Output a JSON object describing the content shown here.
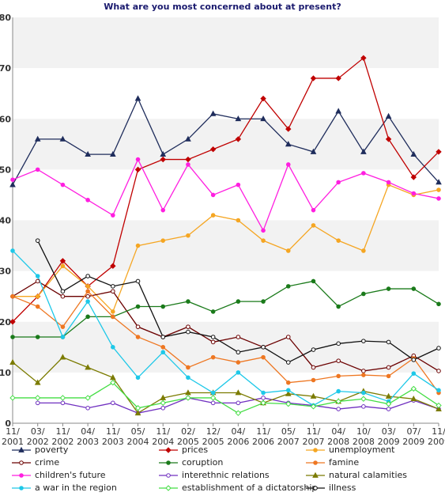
{
  "chart_data": {
    "type": "line",
    "title": "What are you most concerned about at present?",
    "xlabel": "",
    "ylabel": "",
    "ylim": [
      0,
      80
    ],
    "yticks": [
      0,
      10,
      20,
      30,
      40,
      50,
      60,
      70,
      80
    ],
    "grid": "horizontal bands",
    "legend_position": "bottom",
    "x": [
      "11/ 2001",
      "03/ 2002",
      "11/ 2002",
      "04/ 2003",
      "11/ 2003",
      "05/ 2004",
      "11/ 2004",
      "02/ 2005",
      "12/ 2005",
      "04/ 2006",
      "11/ 2006",
      "05/ 2007",
      "11/ 2007",
      "04/ 2008",
      "10/ 2008",
      "03/ 2009",
      "07/ 2009",
      "11/ 2009"
    ],
    "series": [
      {
        "name": "poverty",
        "color": "#1f2d5c",
        "marker": "triangle",
        "values": [
          47,
          56,
          56,
          53,
          53,
          64,
          53,
          56,
          61,
          60,
          60,
          55,
          53.5,
          61.5,
          53.5,
          60.5,
          53,
          47.5
        ]
      },
      {
        "name": "prices",
        "color": "#c00000",
        "marker": "diamond",
        "values": [
          20,
          25,
          32,
          27,
          31,
          50,
          52,
          52,
          54,
          56,
          64,
          58,
          68,
          68,
          72,
          56,
          48.5,
          53.5
        ]
      },
      {
        "name": "unemployment",
        "color": "#f5a623",
        "marker": "circle",
        "values": [
          25,
          25,
          31,
          27,
          22,
          35,
          36,
          37,
          41,
          40,
          36,
          34,
          39,
          36,
          34,
          47,
          45,
          46
        ]
      },
      {
        "name": "crime",
        "color": "#6b0000",
        "marker": "circle-open",
        "values": [
          25,
          28,
          25,
          25,
          26,
          19,
          17,
          19,
          16,
          17,
          15,
          17,
          11,
          12.3,
          10.3,
          11,
          13.3,
          10.3
        ]
      },
      {
        "name": "coruption",
        "color": "#1a7a1a",
        "marker": "circle",
        "values": [
          17,
          17,
          17,
          21,
          21,
          23,
          23,
          24,
          22,
          24,
          24,
          27,
          28,
          23,
          25.5,
          26.5,
          26.5,
          23.5
        ]
      },
      {
        "name": "famine",
        "color": "#ee7722",
        "marker": "circle",
        "values": [
          25,
          23,
          19,
          26,
          21,
          17,
          15,
          11,
          13,
          12,
          13,
          8,
          8.5,
          9.3,
          9.5,
          9.3,
          12.8,
          6
        ]
      },
      {
        "name": "children's future",
        "color": "#ff1fe0",
        "marker": "circle",
        "values": [
          48,
          50,
          47,
          44,
          41,
          52,
          42,
          51,
          45,
          47,
          38,
          51,
          42,
          47.5,
          49.3,
          47.5,
          45.3,
          44.3
        ]
      },
      {
        "name": "interethnic relations",
        "color": "#7030c0",
        "marker": "circle-open",
        "values": [
          null,
          4,
          4,
          3,
          4,
          2,
          3,
          5,
          4,
          4,
          5,
          4,
          3.5,
          2.8,
          3.3,
          2.8,
          4.5,
          2.8
        ]
      },
      {
        "name": "natural calamities",
        "color": "#7b7b00",
        "marker": "triangle",
        "values": [
          12,
          8,
          13,
          11,
          9,
          2,
          5,
          6,
          6,
          6,
          4,
          5.8,
          5.3,
          4.3,
          6.3,
          5.3,
          4.8,
          2.8
        ]
      },
      {
        "name": "a war in the region",
        "color": "#1ec8e8",
        "marker": "circle",
        "values": [
          34,
          29,
          17,
          24,
          15,
          9,
          14,
          9,
          6,
          10,
          6,
          6.5,
          3.5,
          6.3,
          6,
          4.3,
          9.8,
          6.5
        ]
      },
      {
        "name": "establishment of a dictatorship",
        "color": "#44dd44",
        "marker": "diamond-open",
        "values": [
          5,
          5,
          5,
          5,
          8,
          3,
          4,
          5,
          5,
          2,
          4,
          3.8,
          3.3,
          4.3,
          4.8,
          3.8,
          6.8,
          3.5
        ]
      },
      {
        "name": "illness",
        "color": "#111111",
        "marker": "circle-open",
        "values": [
          null,
          36,
          26,
          29,
          27,
          28,
          17,
          18,
          17,
          14,
          15,
          12,
          14.5,
          15.7,
          16.2,
          16,
          12.5,
          14.8
        ]
      }
    ]
  }
}
